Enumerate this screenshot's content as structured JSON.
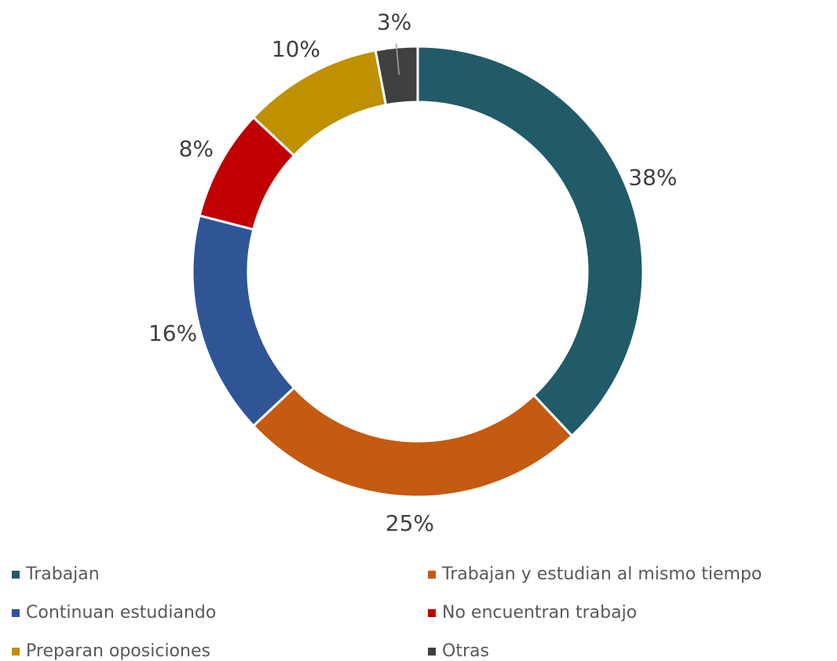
{
  "chart_data": {
    "type": "pie",
    "donut": true,
    "categories": [
      "Trabajan",
      "Trabajan y estudian al mismo tiempo",
      "Continuan estudiando",
      "No encuentran trabajo",
      "Preparan oposiciones",
      "Otras"
    ],
    "values": [
      38,
      25,
      16,
      8,
      10,
      3
    ],
    "value_labels": [
      "38%",
      "25%",
      "16%",
      "8%",
      "10%",
      "3%"
    ],
    "colors": [
      "#215b68",
      "#c55a11",
      "#2f5597",
      "#c00000",
      "#bf9000",
      "#404040"
    ],
    "legend": "bottom"
  }
}
